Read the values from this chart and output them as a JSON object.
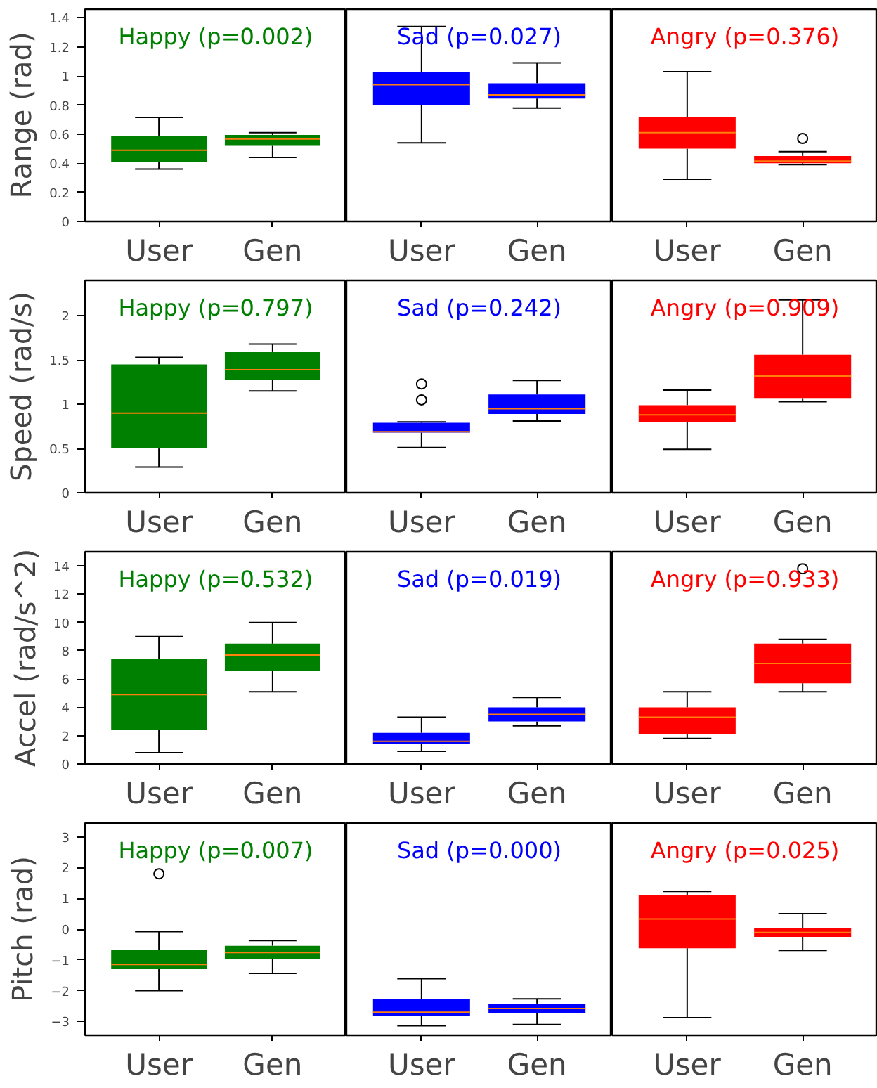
{
  "chart_data": [
    {
      "type": "box",
      "ylabel": "Range (rad)",
      "annotations": [
        "Happy (p=0.002)"
      ],
      "color": "#008000",
      "categories": [
        "User",
        "Gen"
      ],
      "ylim": [
        0,
        1.46
      ],
      "yticks": [
        0.0,
        0.2,
        0.4,
        0.6,
        0.8,
        1.0,
        1.2,
        1.4
      ],
      "boxes": [
        {
          "low": 0.36,
          "q1": 0.41,
          "median": 0.49,
          "q3": 0.59,
          "high": 0.715
        },
        {
          "low": 0.44,
          "q1": 0.52,
          "median": 0.567,
          "q3": 0.595,
          "high": 0.61
        }
      ]
    },
    {
      "type": "box",
      "annotations": [
        "Sad (p=0.027)"
      ],
      "color": "#0000ff",
      "categories": [
        "User",
        "Gen"
      ],
      "ylim": [
        0,
        1.46
      ],
      "tick_labels": "x",
      "boxes": [
        {
          "low": 0.54,
          "q1": 0.8,
          "median": 0.94,
          "q3": 1.025,
          "high": 1.34
        },
        {
          "low": 0.78,
          "q1": 0.845,
          "median": 0.87,
          "q3": 0.95,
          "high": 1.09
        }
      ]
    },
    {
      "type": "box",
      "annotations": [
        "Angry (p=0.376)"
      ],
      "color": "#ff0000",
      "categories": [
        "User",
        "Gen"
      ],
      "ylim": [
        0,
        1.46
      ],
      "tick_labels": "x",
      "boxes": [
        {
          "low": 0.29,
          "q1": 0.5,
          "median": 0.61,
          "q3": 0.72,
          "high": 1.03
        },
        {
          "low": 0.39,
          "q1": 0.4,
          "median": 0.415,
          "q3": 0.45,
          "high": 0.48,
          "outliers": [
            0.57
          ]
        }
      ]
    },
    {
      "type": "box",
      "ylabel": "Speed (rad/s)",
      "annotations": [
        "Happy (p=0.797)"
      ],
      "color": "#008000",
      "categories": [
        "User",
        "Gen"
      ],
      "ylim": [
        0,
        2.4
      ],
      "yticks": [
        0.0,
        0.5,
        1.0,
        1.5,
        2.0
      ],
      "boxes": [
        {
          "low": 0.29,
          "q1": 0.5,
          "median": 0.9,
          "q3": 1.45,
          "high": 1.53
        },
        {
          "low": 1.15,
          "q1": 1.28,
          "median": 1.39,
          "q3": 1.59,
          "high": 1.68
        }
      ]
    },
    {
      "type": "box",
      "annotations": [
        "Sad (p=0.242)"
      ],
      "color": "#0000ff",
      "categories": [
        "User",
        "Gen"
      ],
      "ylim": [
        0,
        2.4
      ],
      "tick_labels": "x",
      "boxes": [
        {
          "low": 0.51,
          "q1": 0.68,
          "median": 0.69,
          "q3": 0.79,
          "high": 0.8,
          "outliers": [
            1.05,
            1.23
          ]
        },
        {
          "low": 0.81,
          "q1": 0.89,
          "median": 0.95,
          "q3": 1.11,
          "high": 1.27
        }
      ]
    },
    {
      "type": "box",
      "annotations": [
        "Angry (p=0.909)"
      ],
      "color": "#ff0000",
      "categories": [
        "User",
        "Gen"
      ],
      "ylim": [
        0,
        2.4
      ],
      "tick_labels": "x",
      "boxes": [
        {
          "low": 0.49,
          "q1": 0.8,
          "median": 0.88,
          "q3": 0.99,
          "high": 1.16
        },
        {
          "low": 1.03,
          "q1": 1.07,
          "median": 1.32,
          "q3": 1.56,
          "high": 2.18
        }
      ]
    },
    {
      "type": "box",
      "ylabel": "Accel (rad/s^2)",
      "annotations": [
        "Happy (p=0.532)"
      ],
      "color": "#008000",
      "categories": [
        "User",
        "Gen"
      ],
      "ylim": [
        0,
        15
      ],
      "yticks": [
        0,
        2,
        4,
        6,
        8,
        10,
        12,
        14
      ],
      "boxes": [
        {
          "low": 0.8,
          "q1": 2.4,
          "median": 4.9,
          "q3": 7.4,
          "high": 9.0
        },
        {
          "low": 5.1,
          "q1": 6.6,
          "median": 7.7,
          "q3": 8.5,
          "high": 10.0
        }
      ]
    },
    {
      "type": "box",
      "annotations": [
        "Sad (p=0.019)"
      ],
      "color": "#0000ff",
      "categories": [
        "User",
        "Gen"
      ],
      "ylim": [
        0,
        15
      ],
      "tick_labels": "x",
      "boxes": [
        {
          "low": 0.9,
          "q1": 1.4,
          "median": 1.6,
          "q3": 2.2,
          "high": 3.3
        },
        {
          "low": 2.7,
          "q1": 3.0,
          "median": 3.5,
          "q3": 4.0,
          "high": 4.7
        }
      ]
    },
    {
      "type": "box",
      "annotations": [
        "Angry (p=0.933)"
      ],
      "color": "#ff0000",
      "categories": [
        "User",
        "Gen"
      ],
      "ylim": [
        0,
        15
      ],
      "tick_labels": "x",
      "boxes": [
        {
          "low": 1.8,
          "q1": 2.1,
          "median": 3.3,
          "q3": 4.0,
          "high": 5.1
        },
        {
          "low": 5.1,
          "q1": 5.7,
          "median": 7.1,
          "q3": 8.5,
          "high": 8.8,
          "outliers": [
            13.8
          ]
        }
      ]
    },
    {
      "type": "box",
      "ylabel": "Pitch (rad)",
      "annotations": [
        "Happy (p=0.007)"
      ],
      "color": "#008000",
      "categories": [
        "User",
        "Gen"
      ],
      "ylim": [
        -3.45,
        3.45
      ],
      "yticks": [
        -3,
        -2,
        -1,
        0,
        1,
        2,
        3
      ],
      "boxes": [
        {
          "low": -2.0,
          "q1": -1.3,
          "median": -1.15,
          "q3": -0.67,
          "high": -0.08,
          "outliers": [
            1.8
          ]
        },
        {
          "low": -1.44,
          "q1": -0.96,
          "median": -0.76,
          "q3": -0.54,
          "high": -0.37
        }
      ]
    },
    {
      "type": "box",
      "annotations": [
        "Sad (p=0.000)"
      ],
      "color": "#0000ff",
      "categories": [
        "User",
        "Gen"
      ],
      "ylim": [
        -3.45,
        3.45
      ],
      "tick_labels": "x",
      "boxes": [
        {
          "low": -3.14,
          "q1": -2.83,
          "median": -2.7,
          "q3": -2.27,
          "high": -1.61
        },
        {
          "low": -3.1,
          "q1": -2.73,
          "median": -2.58,
          "q3": -2.42,
          "high": -2.27
        }
      ]
    },
    {
      "type": "box",
      "annotations": [
        "Angry (p=0.025)"
      ],
      "color": "#ff0000",
      "categories": [
        "User",
        "Gen"
      ],
      "ylim": [
        -3.45,
        3.45
      ],
      "tick_labels": "x",
      "boxes": [
        {
          "low": -2.88,
          "q1": -0.62,
          "median": 0.33,
          "q3": 1.1,
          "high": 1.23
        },
        {
          "low": -0.69,
          "q1": -0.25,
          "median": -0.11,
          "q3": 0.04,
          "high": 0.5
        }
      ]
    }
  ]
}
